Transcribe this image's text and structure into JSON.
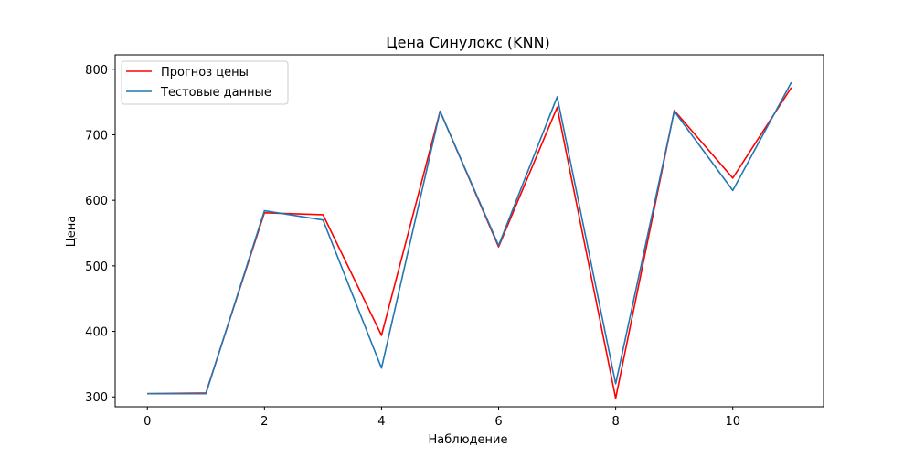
{
  "chart_data": {
    "type": "line",
    "title": "Цена Синулокс  (KNN)",
    "xlabel": "Наблюдение",
    "ylabel": "Цена",
    "x": [
      0,
      1,
      2,
      3,
      4,
      5,
      6,
      7,
      8,
      9,
      10,
      11
    ],
    "xlim": [
      -0.55,
      11.55
    ],
    "ylim": [
      285,
      822
    ],
    "xticks": [
      0,
      2,
      4,
      6,
      8,
      10
    ],
    "yticks": [
      300,
      400,
      500,
      600,
      700,
      800
    ],
    "grid": false,
    "legend_position": "top-left",
    "series": [
      {
        "name": "Прогноз цены",
        "color": "#ff0000",
        "values": [
          305,
          306,
          581,
          578,
          394,
          736,
          529,
          742,
          298,
          737,
          634,
          772
        ]
      },
      {
        "name": "Тестовые данные",
        "color": "#1f77b4",
        "values": [
          305,
          305,
          584,
          570,
          344,
          736,
          531,
          758,
          320,
          736,
          615,
          780
        ]
      }
    ]
  }
}
